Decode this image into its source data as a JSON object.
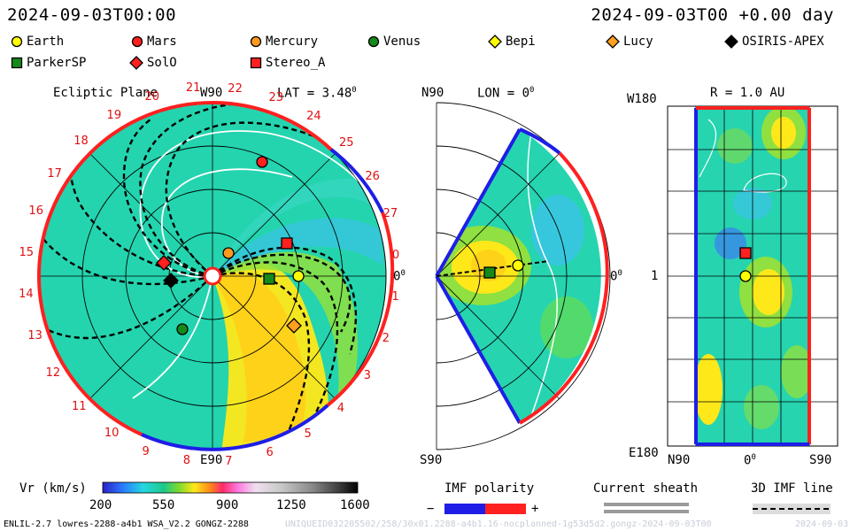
{
  "header": {
    "timestamp_left": "2024-09-03T00:00",
    "timestamp_right": "2024-09-03T00 +0.00 day"
  },
  "legend": [
    {
      "name": "Earth",
      "shape": "circle",
      "color": "#ffff00"
    },
    {
      "name": "Mars",
      "shape": "circle",
      "color": "#ff2020"
    },
    {
      "name": "Mercury",
      "shape": "circle",
      "color": "#ff9a20"
    },
    {
      "name": "Venus",
      "shape": "circle",
      "color": "#138a1a"
    },
    {
      "name": "Bepi",
      "shape": "diamond",
      "color": "#ffff00"
    },
    {
      "name": "Lucy",
      "shape": "diamond",
      "color": "#ffa020"
    },
    {
      "name": "OSIRIS-APEX",
      "shape": "diamond",
      "color": "#000000"
    },
    {
      "name": "ParkerSP",
      "shape": "square",
      "color": "#138a1a"
    },
    {
      "name": "SolO",
      "shape": "diamond",
      "color": "#ff2020"
    },
    {
      "name": "Stereo_A",
      "shape": "square",
      "color": "#ff2020"
    }
  ],
  "panels": {
    "ecliptic": {
      "title": "Ecliptic Plane",
      "lat_label": "LAT = 3.48",
      "degree_mark": "0",
      "top_label": "W90",
      "bottom_label": "E90",
      "right_label": "0",
      "carrington_numbers": [
        "19",
        "20",
        "21",
        "22",
        "23",
        "24",
        "25",
        "26",
        "27",
        "0",
        "1",
        "2",
        "3",
        "4",
        "5",
        "6",
        "7",
        "8",
        "9",
        "10",
        "11",
        "12",
        "13",
        "14",
        "15",
        "16",
        "17",
        "18"
      ]
    },
    "meridional": {
      "title": "LON = 0",
      "degree_mark": "0",
      "top_label": "N90",
      "bottom_label": "S90",
      "right_label": "0"
    },
    "shell": {
      "title": "R = 1.0 AU",
      "top_label": "W180",
      "bottom_label": "E180",
      "mid_label": "1",
      "x_left": "N90",
      "x_mid": "0",
      "x_right": "S90"
    }
  },
  "colorbar": {
    "label": "Vr (km/s)",
    "ticks": [
      "200",
      "550",
      "900",
      "1250",
      "1600"
    ]
  },
  "imf": {
    "polarity_label": "IMF polarity",
    "minus": "−",
    "plus": "+",
    "sheath_label": "Current sheath",
    "line_label": "3D IMF line"
  },
  "footer": {
    "left_text": "ENLIL-2.7 lowres-2288-a4b1 WSA_V2.2 GONGZ-2288",
    "right_text": "UNIQUEID032205502/258/30x01.2288-a4b1.16-nocplanned-1g53d5d2.gongz-2024-09-03T00",
    "date_text": "2024-09-03"
  },
  "chart_data": [
    {
      "type": "heatmap",
      "title": "Ecliptic Plane",
      "variable": "Vr (km/s)",
      "color_range": [
        200,
        1600
      ],
      "bodies_present": [
        "Earth",
        "Mars",
        "Mercury",
        "Venus",
        "Lucy",
        "OSIRIS-APEX",
        "ParkerSP",
        "SolO",
        "Stereo_A"
      ]
    },
    {
      "type": "heatmap",
      "title": "LON = 0",
      "variable": "Vr (km/s)",
      "bodies_present": [
        "Earth",
        "ParkerSP"
      ]
    },
    {
      "type": "heatmap",
      "title": "R = 1.0 AU",
      "variable": "Vr (km/s)",
      "bodies_present": [
        "Earth",
        "Stereo_A"
      ]
    }
  ]
}
